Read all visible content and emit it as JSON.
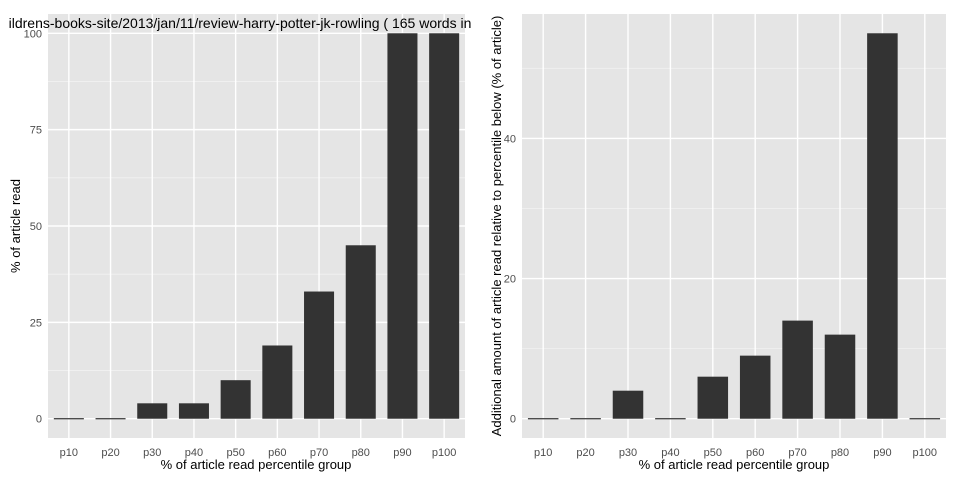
{
  "colors": {
    "panel": "#e5e5e5",
    "grid_major": "#ffffff",
    "grid_minor": "#f2f2f2",
    "bar": "#333333",
    "tick_text": "#4d4d4d"
  },
  "chart_data": [
    {
      "type": "bar",
      "title": "ildrens-books-site/2013/jan/11/review-harry-potter-jk-rowling ( 165 words in",
      "xlabel": "% of article read percentile group",
      "ylabel": "% of article read",
      "categories": [
        "p10",
        "p20",
        "p30",
        "p40",
        "p50",
        "p60",
        "p70",
        "p80",
        "p90",
        "p100"
      ],
      "values": [
        0,
        0,
        4,
        4,
        10,
        19,
        33,
        45,
        100,
        100
      ],
      "yticks": [
        0,
        25,
        50,
        75,
        100
      ],
      "ylim": [
        -5,
        105
      ],
      "grid": true
    },
    {
      "type": "bar",
      "title": "",
      "xlabel": "% of article read percentile group",
      "ylabel": "Additional amount of article read relative to percentile below (% of article)",
      "categories": [
        "p10",
        "p20",
        "p30",
        "p40",
        "p50",
        "p60",
        "p70",
        "p80",
        "p90",
        "p100"
      ],
      "values": [
        0,
        0,
        4,
        0,
        6,
        9,
        14,
        12,
        55,
        0
      ],
      "yticks": [
        0,
        20,
        40
      ],
      "ylim": [
        -2.75,
        57.75
      ],
      "grid": true
    }
  ]
}
